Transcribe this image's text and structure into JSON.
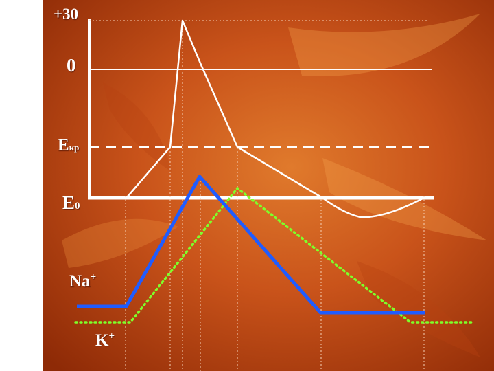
{
  "colors": {
    "background_dark": "#8e2a06",
    "background_mid": "#c9531a",
    "background_light": "#df7a2c",
    "left_band": "#ffffff",
    "axes": "#ffffff",
    "membrane_potential": "#ffffff",
    "sodium": "#1f5cff",
    "potassium": "#7fff2a",
    "threshold_line": "#ffffff"
  },
  "labels": {
    "top_value": "+30",
    "zero": "0",
    "threshold": {
      "main": "E",
      "sub": "кр"
    },
    "resting": {
      "main": "E",
      "sub": "0"
    },
    "sodium": {
      "main": "Na",
      "sup": "+"
    },
    "potassium": {
      "main": "K",
      "sup": "+"
    }
  },
  "curves": {
    "membrane_potential": "action potential (white line)",
    "sodium": "Na+ conductance (blue solid line)",
    "potassium": "K+ conductance (green dotted line)"
  }
}
